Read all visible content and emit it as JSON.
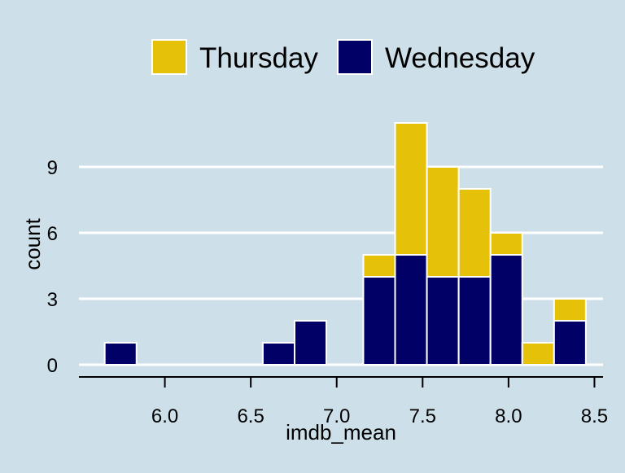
{
  "chart_data": {
    "type": "bar",
    "subtype": "stacked-histogram",
    "title": "",
    "xlabel": "imdb_mean",
    "ylabel": "count",
    "xlim": [
      5.5,
      8.55
    ],
    "ylim": [
      0,
      11.5
    ],
    "xticks": [
      "6.0",
      "6.5",
      "7.0",
      "7.5",
      "8.0",
      "8.5"
    ],
    "yticks": [
      "0",
      "3",
      "6",
      "9"
    ],
    "grid": "horizontal",
    "legend_position": "top",
    "bins": [
      [
        5.65,
        5.835
      ],
      [
        6.57,
        6.755
      ],
      [
        6.755,
        6.94
      ],
      [
        7.155,
        7.34
      ],
      [
        7.34,
        7.525
      ],
      [
        7.525,
        7.71
      ],
      [
        7.71,
        7.895
      ],
      [
        7.895,
        8.08
      ],
      [
        8.08,
        8.265
      ],
      [
        8.265,
        8.45
      ]
    ],
    "series": [
      {
        "name": "Wednesday",
        "color": "#000066",
        "values": [
          1,
          1,
          2,
          4,
          5,
          4,
          4,
          5,
          0,
          2
        ]
      },
      {
        "name": "Thursday",
        "color": "#e6c10a",
        "values": [
          0,
          0,
          0,
          1,
          6,
          5,
          4,
          1,
          1,
          1
        ]
      }
    ]
  }
}
